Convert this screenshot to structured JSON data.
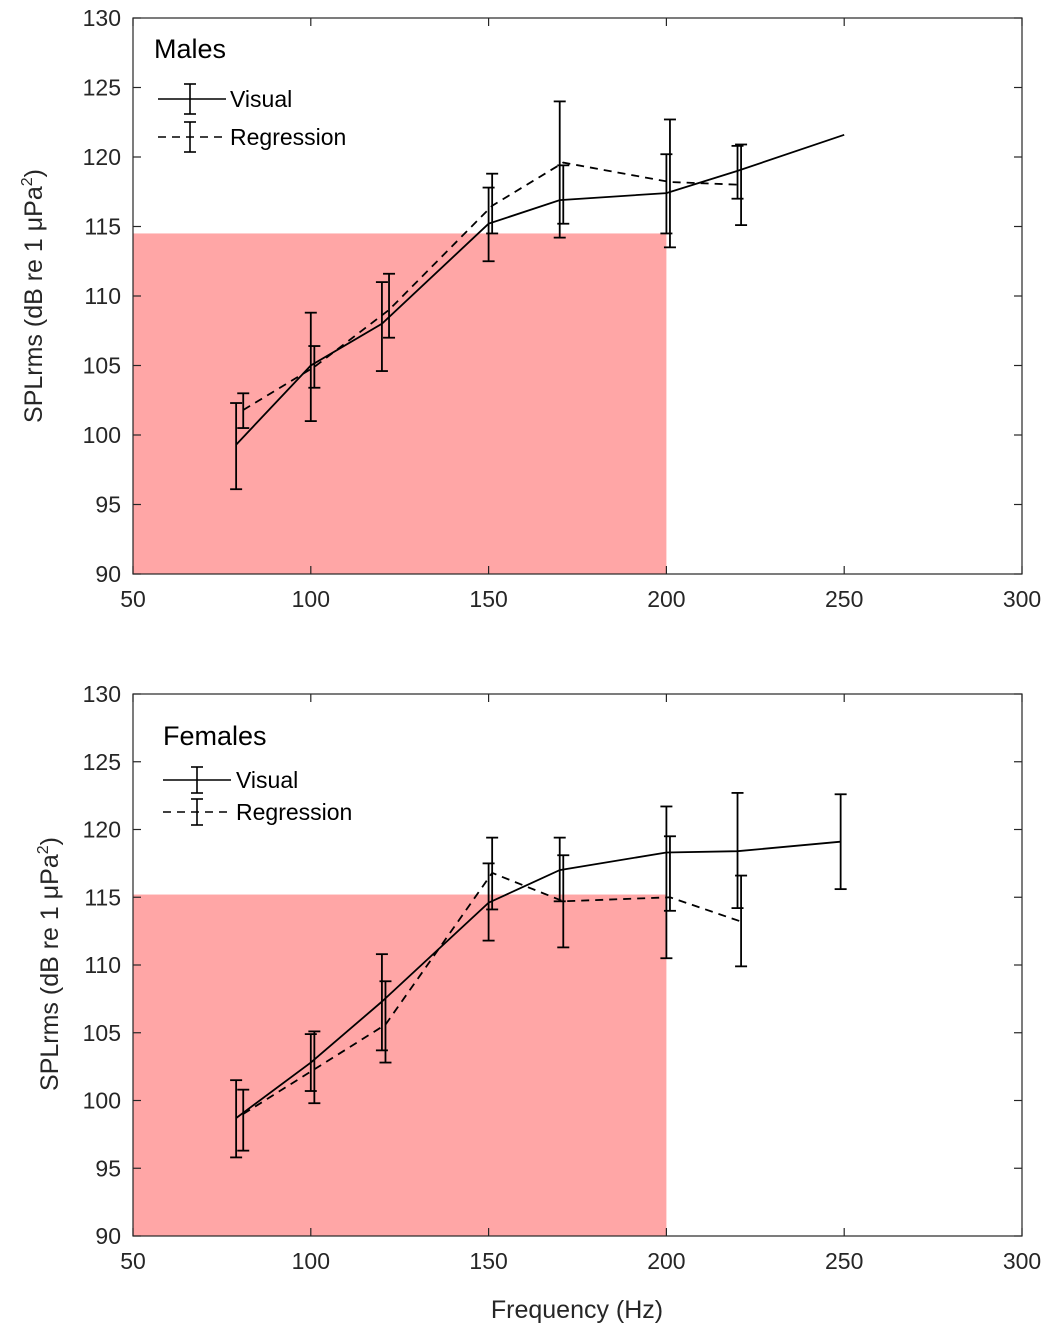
{
  "chart_data": [
    {
      "type": "line",
      "title": "Males",
      "xlabel": "",
      "ylabel": "SPLrms (dB re 1 μPa",
      "ylabel_superscript": "2",
      "ylabel_close": ")",
      "xlim": [
        50,
        300
      ],
      "ylim": [
        90,
        130
      ],
      "x_ticks": [
        50,
        100,
        150,
        200,
        250,
        300
      ],
      "y_ticks": [
        90,
        95,
        100,
        105,
        110,
        115,
        120,
        125,
        130
      ],
      "grid": false,
      "legend_position": "top-left",
      "shaded_region": {
        "x": [
          50,
          200
        ],
        "y": [
          90,
          114.5
        ],
        "color": "#ff8080",
        "opacity": 0.7
      },
      "series": [
        {
          "name": "Visual",
          "style": "solid",
          "color": "#000000",
          "x": [
            79,
            100,
            120,
            150,
            170,
            200,
            220,
            250
          ],
          "y": [
            99.3,
            105.0,
            108.0,
            115.2,
            116.9,
            117.4,
            119.0,
            121.6
          ],
          "err_low": [
            96.1,
            101.0,
            104.6,
            112.5,
            114.2,
            114.5,
            117.0,
            null
          ],
          "err_high": [
            102.3,
            108.8,
            111.0,
            117.8,
            124.0,
            120.2,
            120.8,
            null
          ]
        },
        {
          "name": "Regression",
          "style": "dashed",
          "color": "#000000",
          "x": [
            81,
            101,
            122,
            151,
            171,
            201,
            221
          ],
          "y": [
            101.8,
            104.9,
            109.0,
            116.5,
            119.6,
            118.2,
            118.0
          ],
          "err_low": [
            100.5,
            103.4,
            107.0,
            114.5,
            115.2,
            113.5,
            115.1
          ],
          "err_high": [
            103.0,
            106.4,
            111.6,
            118.8,
            119.4,
            122.7,
            120.9
          ]
        }
      ]
    },
    {
      "type": "line",
      "title": "Females",
      "xlabel": "Frequency (Hz)",
      "ylabel": "SPLrms (dB re 1 μPa",
      "ylabel_superscript": "2",
      "ylabel_close": ")",
      "xlim": [
        50,
        300
      ],
      "ylim": [
        90,
        130
      ],
      "x_ticks": [
        50,
        100,
        150,
        200,
        250,
        300
      ],
      "y_ticks": [
        90,
        95,
        100,
        105,
        110,
        115,
        120,
        125,
        130
      ],
      "grid": false,
      "legend_position": "top-left",
      "shaded_region": {
        "x": [
          50,
          200
        ],
        "y": [
          90,
          115.2
        ],
        "color": "#ff8080",
        "opacity": 0.7
      },
      "series": [
        {
          "name": "Visual",
          "style": "solid",
          "color": "#000000",
          "x": [
            79,
            100,
            120,
            150,
            170,
            200,
            220,
            249
          ],
          "y": [
            98.7,
            102.8,
            107.3,
            114.6,
            117.0,
            118.3,
            118.4,
            119.1
          ],
          "err_low": [
            95.8,
            100.7,
            103.7,
            111.8,
            114.7,
            110.5,
            114.2,
            115.6
          ],
          "err_high": [
            101.5,
            104.9,
            110.8,
            117.5,
            119.4,
            121.7,
            122.7,
            122.6
          ]
        },
        {
          "name": "Regression",
          "style": "dashed",
          "color": "#000000",
          "x": [
            81,
            101,
            121,
            151,
            171,
            201,
            221
          ],
          "y": [
            99.0,
            102.3,
            105.6,
            116.8,
            114.7,
            115.0,
            113.2
          ],
          "err_low": [
            96.3,
            99.8,
            102.8,
            114.1,
            111.3,
            114.0,
            109.9
          ],
          "err_high": [
            100.8,
            105.1,
            108.8,
            119.4,
            118.1,
            119.5,
            116.6
          ]
        }
      ]
    }
  ]
}
